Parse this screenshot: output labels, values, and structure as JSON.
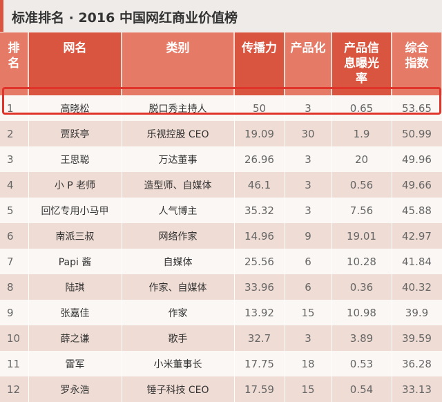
{
  "title": "标准排名 · 2016 中国网红商业价值榜",
  "colors": {
    "header_dark": "#d9553f",
    "header_light": "#e57a66",
    "highlight": "#e0332a"
  },
  "headers": [
    "排名",
    "网名",
    "类别",
    "传播力",
    "产品化",
    "产品信息曝光率",
    "综合指数"
  ],
  "rows": [
    [
      "1",
      "高晓松",
      "脱口秀主持人",
      "50",
      "3",
      "0.65",
      "53.65"
    ],
    [
      "2",
      "贾跃亭",
      "乐视控股 CEO",
      "19.09",
      "30",
      "1.9",
      "50.99"
    ],
    [
      "3",
      "王思聪",
      "万达董事",
      "26.96",
      "3",
      "20",
      "49.96"
    ],
    [
      "4",
      "小 P 老师",
      "造型师、自媒体",
      "46.1",
      "3",
      "0.56",
      "49.66"
    ],
    [
      "5",
      "回忆专用小马甲",
      "人气博主",
      "35.32",
      "3",
      "7.56",
      "45.88"
    ],
    [
      "6",
      "南派三叔",
      "网络作家",
      "14.96",
      "9",
      "19.01",
      "42.97"
    ],
    [
      "7",
      "Papi 酱",
      "自媒体",
      "25.56",
      "6",
      "10.28",
      "41.84"
    ],
    [
      "8",
      "陆琪",
      "作家、自媒体",
      "33.96",
      "6",
      "0.36",
      "40.32"
    ],
    [
      "9",
      "张嘉佳",
      "作家",
      "13.92",
      "15",
      "10.98",
      "39.9"
    ],
    [
      "10",
      "薛之谦",
      "歌手",
      "32.7",
      "3",
      "3.89",
      "39.59"
    ],
    [
      "11",
      "雷军",
      "小米董事长",
      "17.75",
      "18",
      "0.53",
      "36.28"
    ],
    [
      "12",
      "罗永浩",
      "锤子科技 CEO",
      "17.59",
      "15",
      "0.54",
      "33.13"
    ]
  ]
}
